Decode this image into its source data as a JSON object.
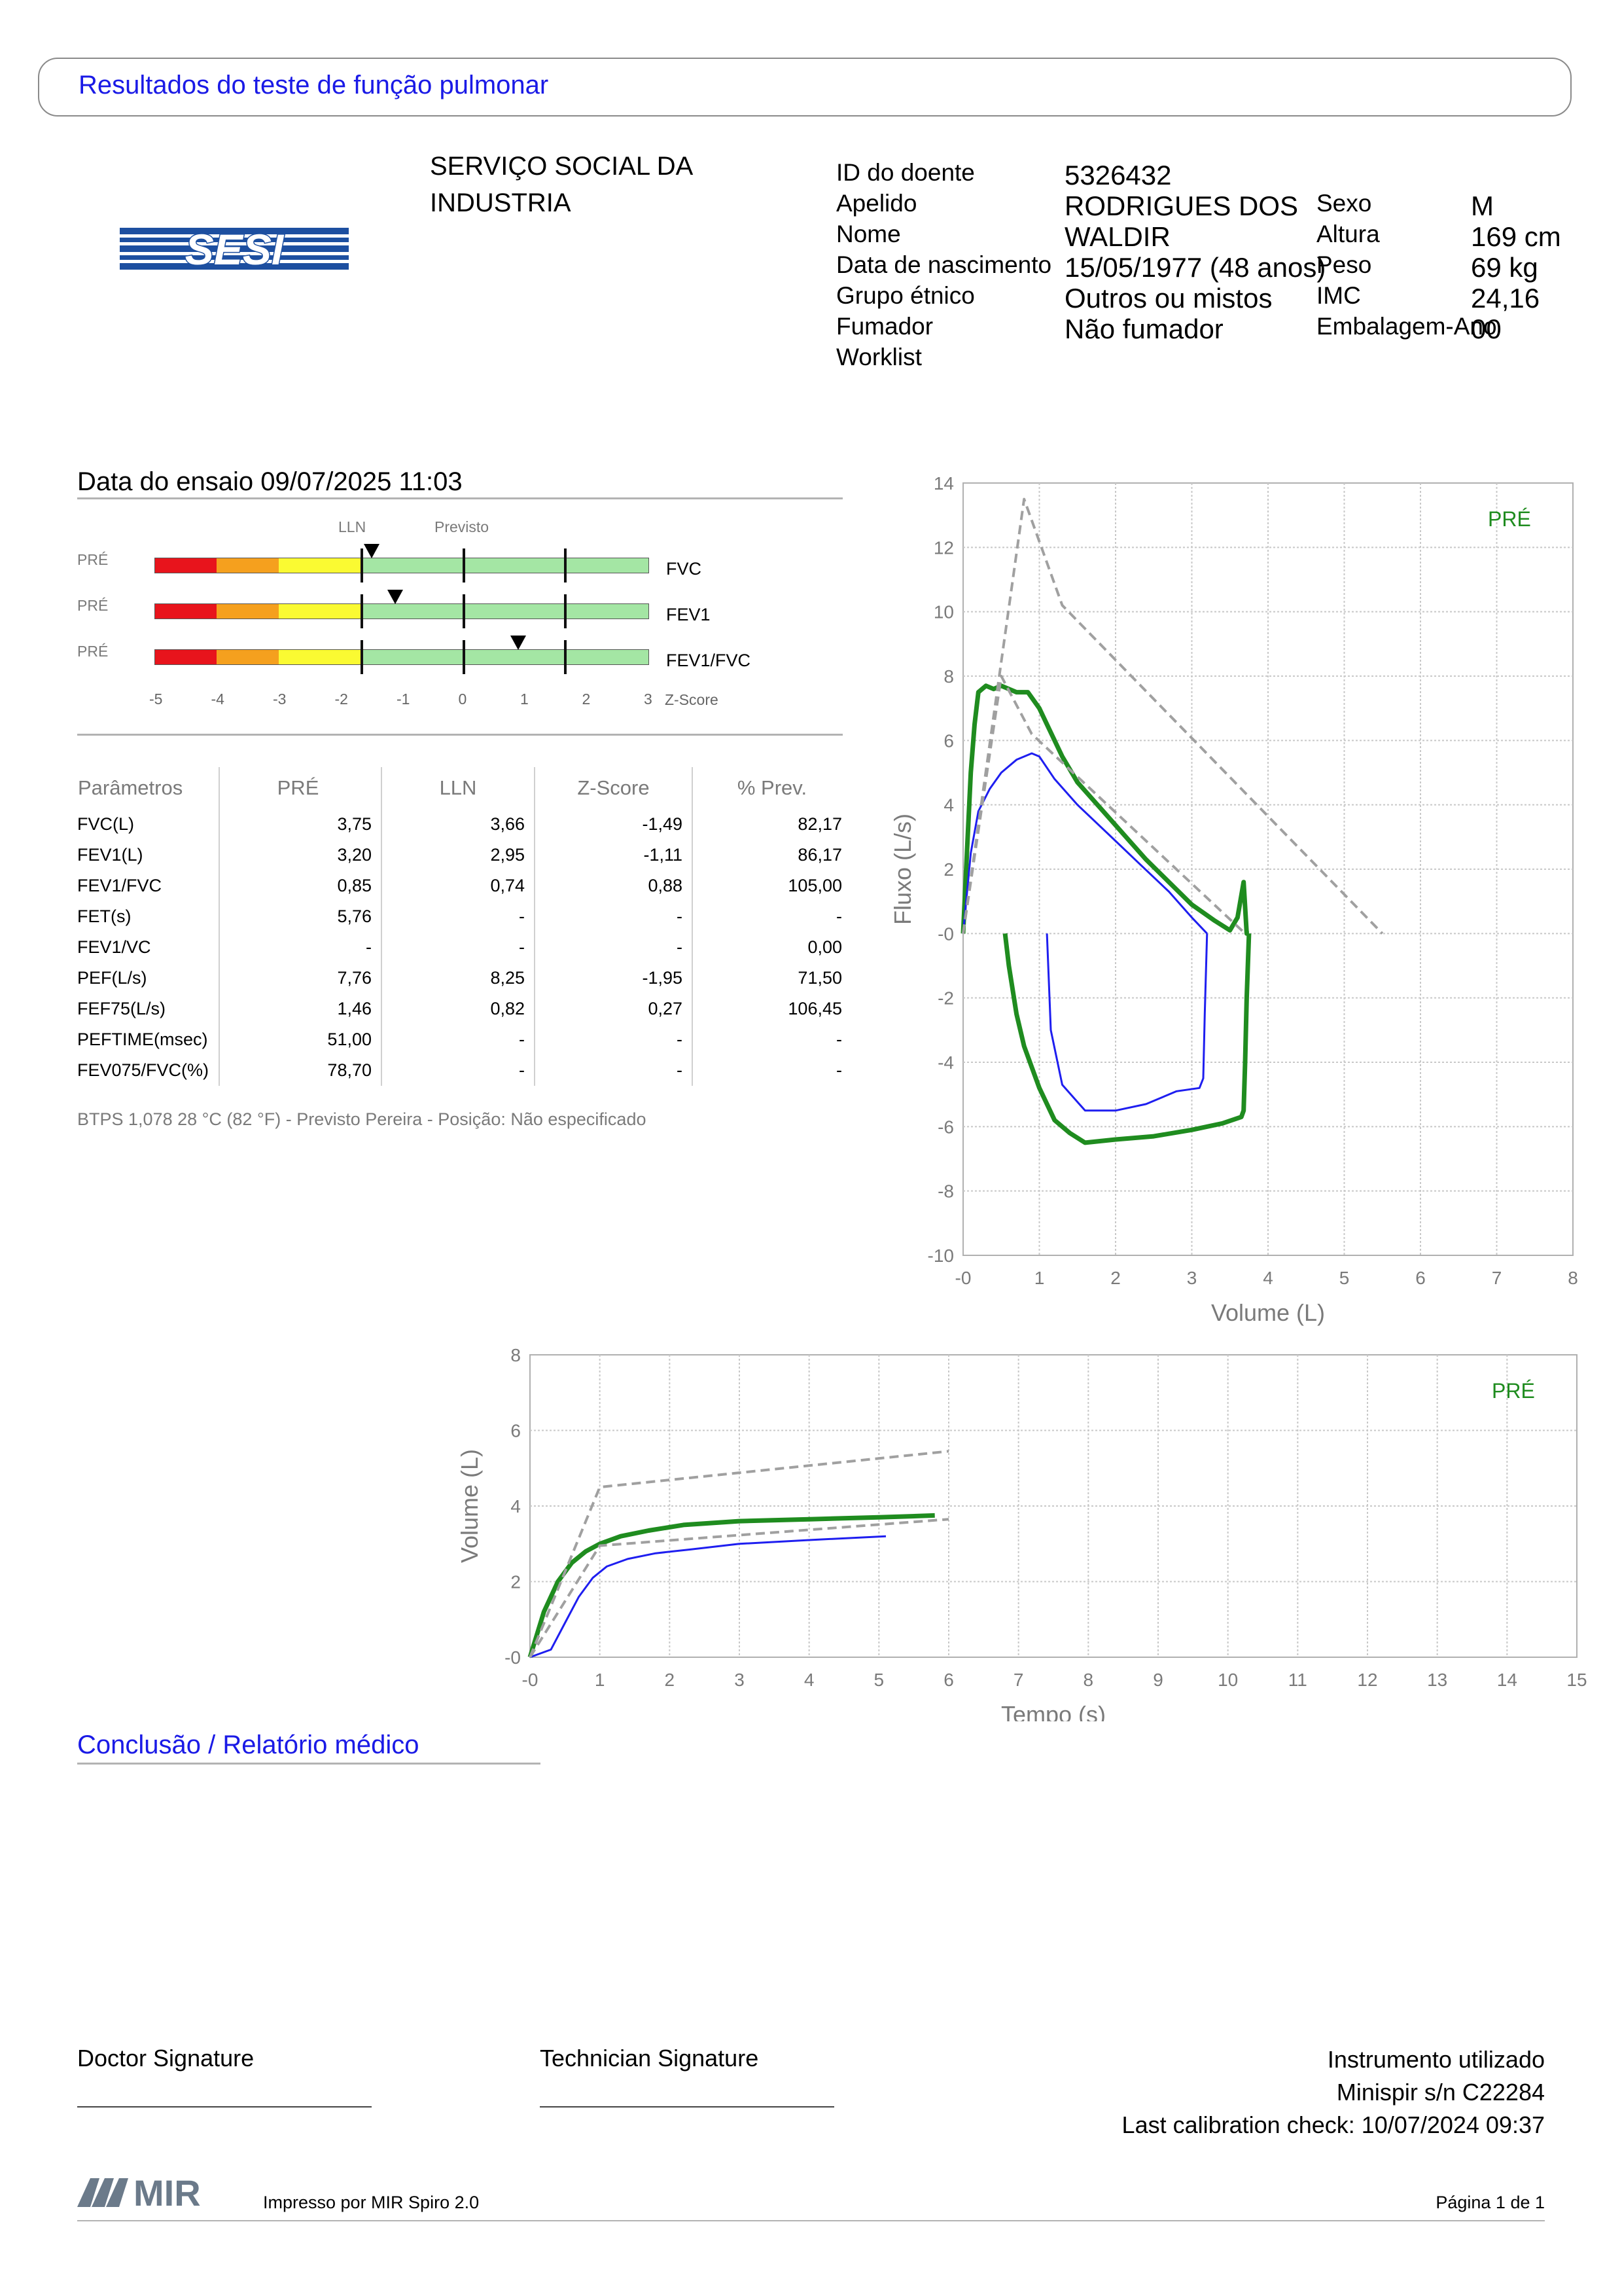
{
  "header": {
    "title": "Resultados do teste de função pulmonar"
  },
  "logo": {
    "text": "SESI"
  },
  "organization": {
    "name_line1": "SERVIÇO SOCIAL DA",
    "name_line2": "INDUSTRIA"
  },
  "patient": {
    "id_label": "ID do doente",
    "id": "5326432",
    "surname_label": "Apelido",
    "surname": "RODRIGUES DOS",
    "name_label": "Nome",
    "name": "WALDIR",
    "dob_label": "Data de nascimento",
    "dob": "15/05/1977 (48 anos)",
    "ethnic_label": "Grupo étnico",
    "ethnic": "Outros ou mistos",
    "smoker_label": "Fumador",
    "smoker": "Não fumador",
    "worklist_label": "Worklist",
    "sex_label": "Sexo",
    "sex": "M",
    "height_label": "Altura",
    "height": "169 cm",
    "weight_label": "Peso",
    "weight": "69 kg",
    "bmi_label": "IMC",
    "bmi": "24,16",
    "pack_label": "Embalagem-Ano",
    "pack": "00"
  },
  "test": {
    "date_label": "Data do ensaio 09/07/2025 11:03"
  },
  "zscore": {
    "lln_label": "LLN",
    "pred_label": "Previsto",
    "axis_title": "Z-Score",
    "axis_ticks": [
      "-5",
      "-4",
      "-3",
      "-2",
      "-1",
      "0",
      "1",
      "2",
      "3"
    ],
    "colors": {
      "red": "#e8141c",
      "orange": "#f5a01e",
      "yellow": "#fafa32",
      "green": "#a4e6a4"
    },
    "rows": [
      {
        "tag": "PRÉ",
        "name": "FVC",
        "z": -1.49
      },
      {
        "tag": "PRÉ",
        "name": "FEV1",
        "z": -1.11
      },
      {
        "tag": "PRÉ",
        "name": "FEV1/FVC",
        "z": 0.88
      }
    ]
  },
  "params": {
    "headers": [
      "Parâmetros",
      "PRÉ",
      "LLN",
      "Z-Score",
      "% Prev."
    ],
    "rows": [
      [
        "FVC(L)",
        "3,75",
        "3,66",
        "-1,49",
        "82,17"
      ],
      [
        "FEV1(L)",
        "3,20",
        "2,95",
        "-1,11",
        "86,17"
      ],
      [
        "FEV1/FVC",
        "0,85",
        "0,74",
        "0,88",
        "105,00"
      ],
      [
        "FET(s)",
        "5,76",
        "-",
        "-",
        "-"
      ],
      [
        "FEV1/VC",
        "-",
        "-",
        "-",
        "0,00"
      ],
      [
        "PEF(L/s)",
        "7,76",
        "8,25",
        "-1,95",
        "71,50"
      ],
      [
        "FEF75(L/s)",
        "1,46",
        "0,82",
        "0,27",
        "106,45"
      ],
      [
        "PEFTIME(msec)",
        "51,00",
        "-",
        "-",
        "-"
      ],
      [
        "FEV075/FVC(%)",
        "78,70",
        "-",
        "-",
        "-"
      ]
    ],
    "footnote": "BTPS 1,078 28 °C (82 °F) - Previsto Pereira - Posição: Não especificado"
  },
  "chart_data": [
    {
      "type": "line",
      "xlabel": "Volume (L)",
      "ylabel": "Fluxo (L/s)",
      "xlim": [
        0,
        8
      ],
      "ylim": [
        -10,
        14
      ],
      "x_ticks": [
        "-0",
        "1",
        "2",
        "3",
        "4",
        "5",
        "6",
        "7",
        "8"
      ],
      "y_ticks": [
        "14",
        "12",
        "10",
        "8",
        "6",
        "4",
        "2",
        "-0",
        "-2",
        "-4",
        "-6",
        "-8",
        "-10"
      ],
      "legend_label": "PRÉ",
      "colors": {
        "measured": "#1f8c1f",
        "predicted": "#1e1ef0",
        "reference": "#a0a0a0"
      },
      "series": [
        {
          "style": "measured",
          "x": [
            0,
            0.05,
            0.1,
            0.15,
            0.2,
            0.3,
            0.4,
            0.5,
            0.6,
            0.7,
            0.85,
            1.0,
            1.1,
            1.3,
            1.5,
            1.8,
            2.1,
            2.4,
            2.7,
            3.0,
            3.3,
            3.5,
            3.6,
            3.68,
            3.72,
            3.75
          ],
          "y": [
            0,
            2.5,
            5,
            6.5,
            7.5,
            7.7,
            7.6,
            7.7,
            7.6,
            7.5,
            7.5,
            7.0,
            6.5,
            5.5,
            4.7,
            3.9,
            3.1,
            2.3,
            1.6,
            0.9,
            0.4,
            0.1,
            0.5,
            1.6,
            0,
            0
          ]
        },
        {
          "style": "measured",
          "x": [
            3.75,
            3.72,
            3.7,
            3.68,
            3.65,
            3.4,
            3.0,
            2.5,
            2.0,
            1.6,
            1.4,
            1.2,
            1.0,
            0.8,
            0.7,
            0.6,
            0.55
          ],
          "y": [
            0,
            -2,
            -4,
            -5.5,
            -5.7,
            -5.9,
            -6.1,
            -6.3,
            -6.4,
            -6.5,
            -6.2,
            -5.8,
            -4.8,
            -3.5,
            -2.5,
            -1.0,
            0
          ]
        },
        {
          "style": "predicted",
          "x": [
            0,
            0.1,
            0.2,
            0.35,
            0.5,
            0.7,
            0.9,
            1.0,
            1.2,
            1.5,
            1.9,
            2.3,
            2.7,
            3.0,
            3.2
          ],
          "y": [
            0,
            2.5,
            3.8,
            4.5,
            5.0,
            5.4,
            5.6,
            5.5,
            4.8,
            4.0,
            3.1,
            2.2,
            1.3,
            0.5,
            0
          ]
        },
        {
          "style": "predicted",
          "x": [
            3.2,
            3.17,
            3.15,
            3.1,
            2.8,
            2.4,
            2.0,
            1.6,
            1.3,
            1.15,
            1.1
          ],
          "y": [
            0,
            -2.5,
            -4.5,
            -4.8,
            -4.9,
            -5.3,
            -5.5,
            -5.5,
            -4.7,
            -3.0,
            0
          ]
        },
        {
          "style": "reference",
          "x": [
            0,
            0.8,
            1.3,
            5.5
          ],
          "y": [
            0,
            13.5,
            10.2,
            0
          ]
        },
        {
          "style": "reference",
          "x": [
            0,
            0.5,
            0.9,
            3.7
          ],
          "y": [
            0,
            8,
            6.2,
            0
          ]
        }
      ]
    },
    {
      "type": "line",
      "xlabel": "Tempo (s)",
      "ylabel": "Volume (L)",
      "xlim": [
        0,
        15
      ],
      "ylim": [
        0,
        8
      ],
      "x_ticks": [
        "-0",
        "1",
        "2",
        "3",
        "4",
        "5",
        "6",
        "7",
        "8",
        "9",
        "10",
        "11",
        "12",
        "13",
        "14",
        "15"
      ],
      "y_ticks": [
        "8",
        "6",
        "4",
        "2",
        "-0"
      ],
      "legend_label": "PRÉ",
      "colors": {
        "measured": "#1f8c1f",
        "predicted": "#1e1ef0",
        "reference": "#a0a0a0"
      },
      "series": [
        {
          "style": "measured",
          "x": [
            0,
            0.2,
            0.4,
            0.6,
            0.8,
            1.0,
            1.3,
            1.7,
            2.2,
            3,
            4,
            5,
            5.8
          ],
          "y": [
            0,
            1.2,
            2.0,
            2.5,
            2.8,
            3.0,
            3.2,
            3.35,
            3.5,
            3.6,
            3.65,
            3.7,
            3.75
          ]
        },
        {
          "style": "predicted",
          "x": [
            0,
            0.3,
            0.5,
            0.7,
            0.9,
            1.1,
            1.4,
            1.8,
            2.3,
            3,
            4,
            5.1
          ],
          "y": [
            0,
            0.2,
            0.9,
            1.6,
            2.1,
            2.4,
            2.6,
            2.75,
            2.85,
            3.0,
            3.1,
            3.2
          ]
        },
        {
          "style": "reference",
          "x": [
            0,
            1,
            6
          ],
          "y": [
            0,
            4.5,
            5.45
          ]
        },
        {
          "style": "reference",
          "x": [
            0,
            1,
            6
          ],
          "y": [
            0,
            2.95,
            3.65
          ]
        }
      ]
    }
  ],
  "conclusion": {
    "title": "Conclusão / Relatório médico"
  },
  "signatures": {
    "doctor": "Doctor Signature",
    "technician": "Technician Signature"
  },
  "instrument": {
    "label": "Instrumento utilizado",
    "model": "Minispir s/n C22284",
    "calibration": "Last calibration check: 10/07/2024 09:37"
  },
  "footer": {
    "brand": "MIR",
    "printed_by": "Impresso por MIR Spiro 2.0",
    "page": "Página 1 de 1"
  }
}
